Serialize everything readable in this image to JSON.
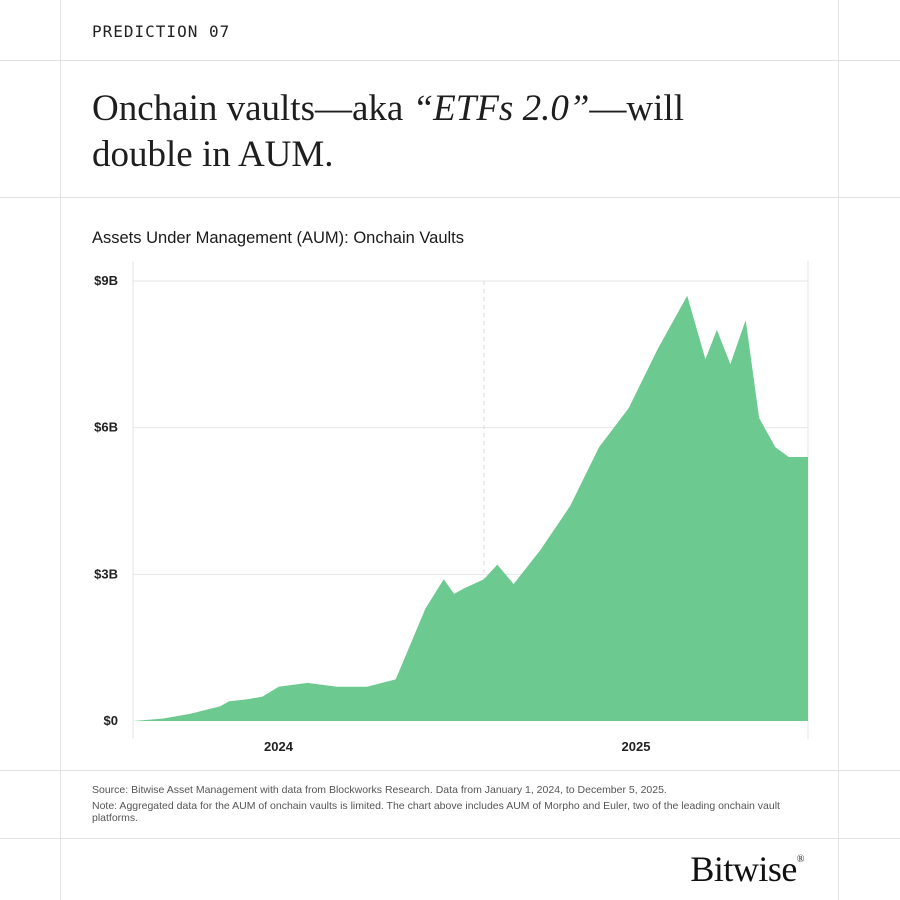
{
  "header": {
    "prediction_label": "PREDICTION 07",
    "headline_before": "Onchain vaults—aka ",
    "headline_italic": "“ETFs 2.0”",
    "headline_after": "—will double in AUM."
  },
  "chart_data": {
    "type": "area",
    "title": "Assets Under Management (AUM): Onchain Vaults",
    "xlabel": "",
    "ylabel": "",
    "yticks": [
      "$0",
      "$3B",
      "$6B",
      "$9B"
    ],
    "ylim": [
      0,
      9
    ],
    "y_unit": "billions USD",
    "xticks": [
      "2024",
      "2025"
    ],
    "x_range": [
      "2024-01-01",
      "2025-12-05"
    ],
    "grid": true,
    "color": "#6cc990",
    "x": [
      "2024-01-01",
      "2024-02-01",
      "2024-03-01",
      "2024-04-01",
      "2024-04-10",
      "2024-05-01",
      "2024-05-15",
      "2024-06-01",
      "2024-07-01",
      "2024-08-01",
      "2024-09-01",
      "2024-10-01",
      "2024-11-01",
      "2024-11-20",
      "2024-12-01",
      "2024-12-10",
      "2025-01-01",
      "2025-01-15",
      "2025-02-01",
      "2025-03-01",
      "2025-04-01",
      "2025-05-01",
      "2025-06-01",
      "2025-07-01",
      "2025-08-01",
      "2025-08-20",
      "2025-09-01",
      "2025-09-15",
      "2025-10-01",
      "2025-10-15",
      "2025-11-01",
      "2025-11-15",
      "2025-12-05"
    ],
    "values": [
      0.0,
      0.05,
      0.15,
      0.3,
      0.4,
      0.45,
      0.5,
      0.7,
      0.78,
      0.7,
      0.7,
      0.85,
      2.3,
      2.9,
      2.6,
      2.7,
      2.9,
      3.2,
      2.8,
      3.5,
      4.4,
      5.6,
      6.4,
      7.6,
      8.7,
      7.4,
      8.0,
      7.3,
      8.2,
      6.2,
      5.6,
      5.4,
      5.4
    ]
  },
  "footer": {
    "source": "Source: Bitwise Asset Management with data from Blockworks Research. Data from January 1, 2024, to December 5, 2025.",
    "note": "Note: Aggregated data for the AUM of onchain vaults is limited. The chart above includes AUM of Morpho and Euler, two of the leading onchain vault platforms.",
    "brand": "Bitwise",
    "brand_mark": "®"
  }
}
